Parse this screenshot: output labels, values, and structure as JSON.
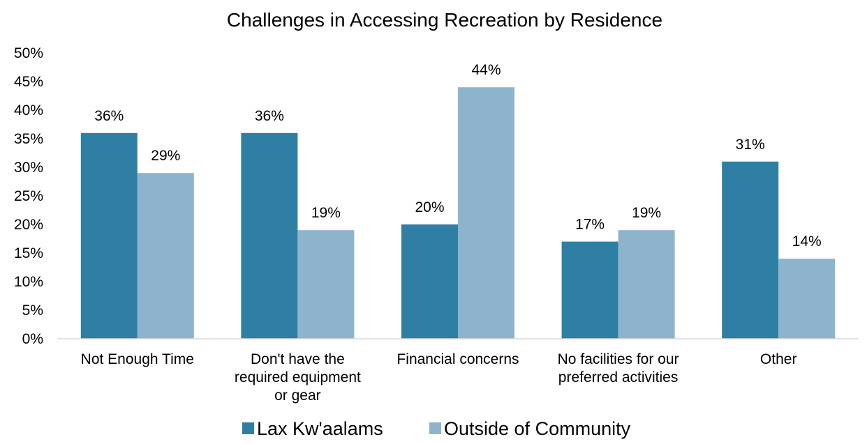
{
  "chart_data": {
    "type": "bar",
    "title": "Challenges in Accessing Recreation by Residence",
    "xlabel": "",
    "ylabel": "",
    "categories": [
      [
        "Not Enough Time"
      ],
      [
        "Don't have the",
        "required equipment",
        "or gear"
      ],
      [
        "Financial concerns"
      ],
      [
        "No facilities for our",
        "preferred activities"
      ],
      [
        "Other"
      ]
    ],
    "series": [
      {
        "name": "Lax Kw'aalams",
        "color": "#2e7fa3",
        "values": [
          36,
          36,
          20,
          17,
          31
        ],
        "labels": [
          "36%",
          "36%",
          "20%",
          "17%",
          "31%"
        ]
      },
      {
        "name": "Outside of Community",
        "color": "#8db4cc",
        "values": [
          29,
          19,
          44,
          19,
          14
        ],
        "labels": [
          "29%",
          "19%",
          "44%",
          "19%",
          "14%"
        ]
      }
    ],
    "ylim": [
      0,
      50
    ],
    "yticks": [
      0,
      5,
      10,
      15,
      20,
      25,
      30,
      35,
      40,
      45,
      50
    ],
    "ytick_labels": [
      "0%",
      "5%",
      "10%",
      "15%",
      "20%",
      "25%",
      "30%",
      "35%",
      "40%",
      "45%",
      "50%"
    ],
    "grid": false,
    "legend_position": "bottom"
  }
}
